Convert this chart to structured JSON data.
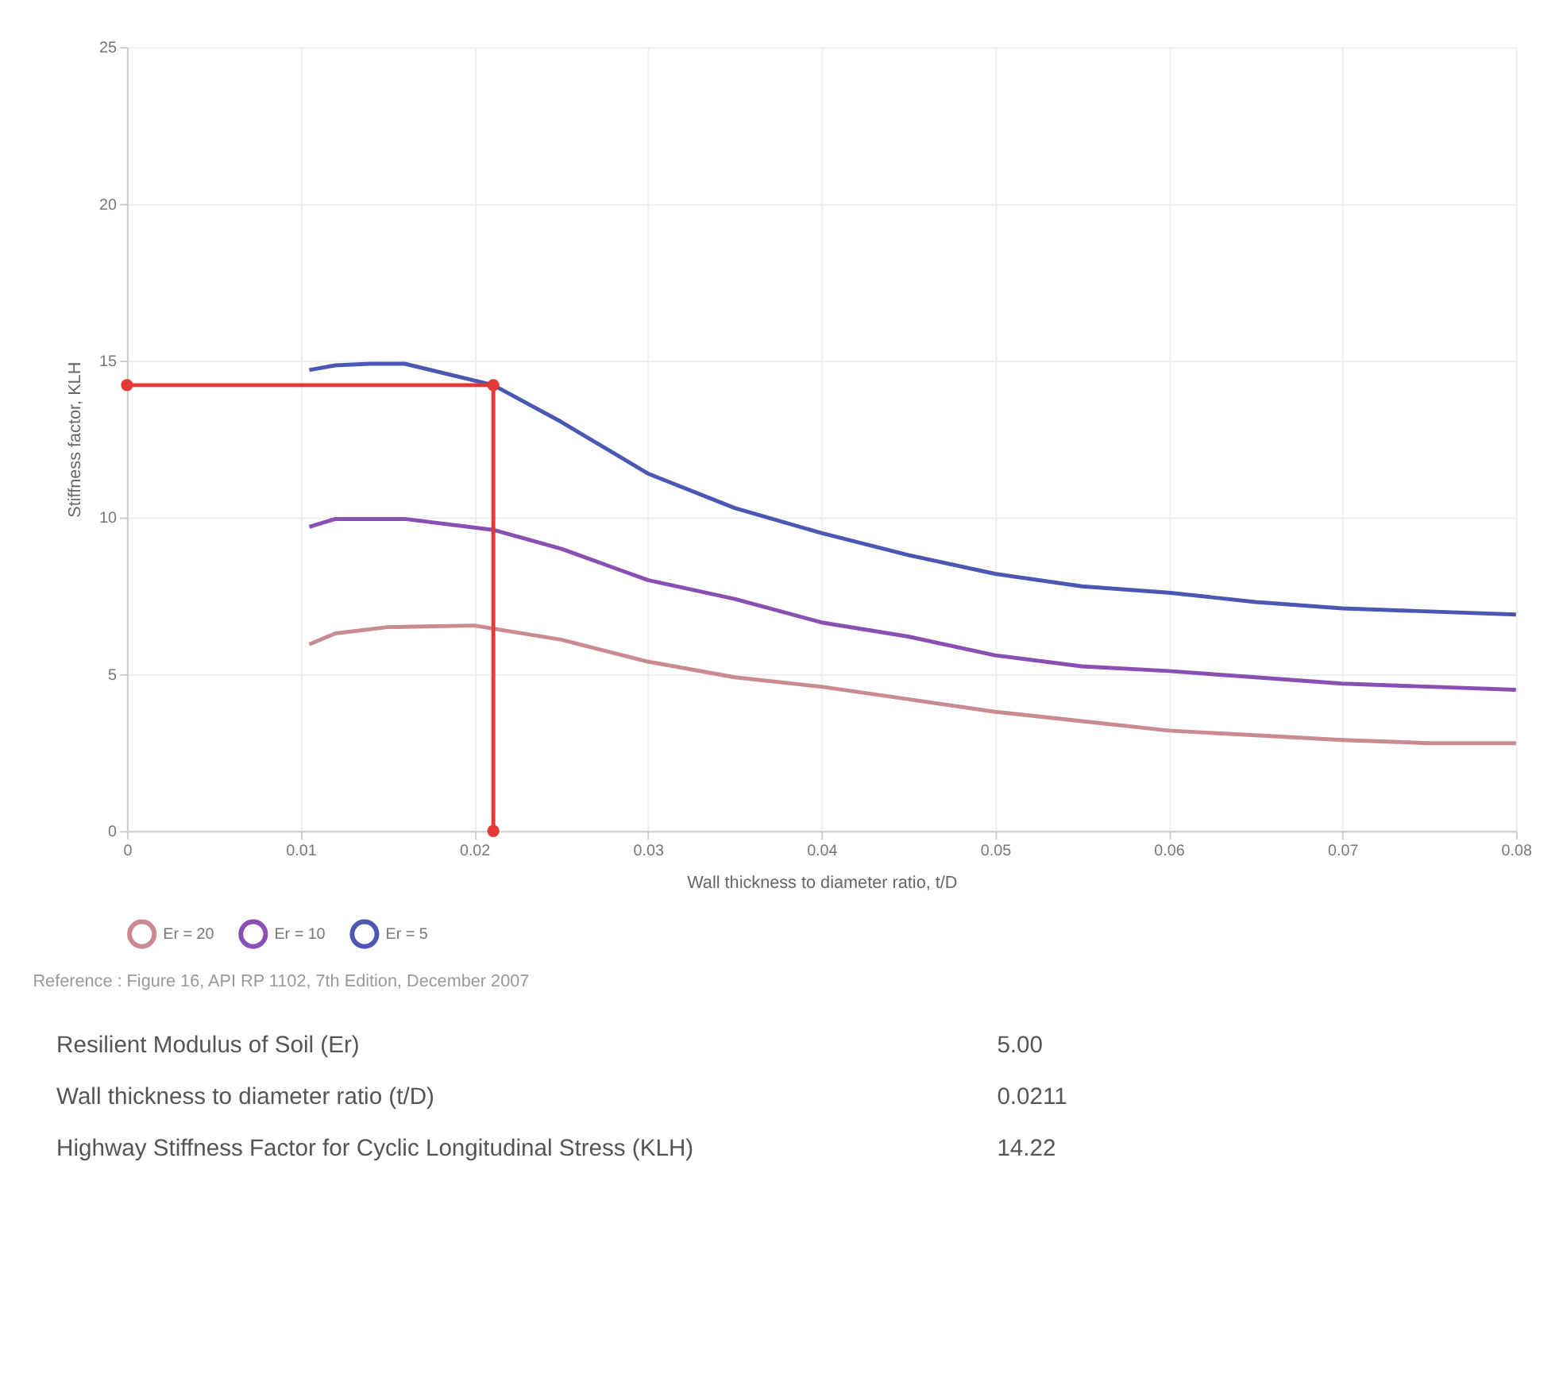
{
  "chart_data": {
    "type": "line",
    "xlabel": "Wall thickness to diameter ratio, t/D",
    "ylabel": "Stiffness factor, KLH",
    "xlim": [
      0,
      0.08
    ],
    "xticks": [
      0,
      0.01,
      0.02,
      0.03,
      0.04,
      0.05,
      0.06,
      0.07,
      0.08
    ],
    "ylim": [
      0,
      25
    ],
    "yticks": [
      0,
      5,
      10,
      15,
      20,
      25
    ],
    "grid": true,
    "legend": "bottom",
    "marker": "none",
    "line_style": "solid",
    "series": [
      {
        "name": "Er = 20",
        "color": "#c98a92",
        "x": [
          0.0105,
          0.012,
          0.015,
          0.02,
          0.025,
          0.03,
          0.035,
          0.04,
          0.045,
          0.05,
          0.055,
          0.06,
          0.065,
          0.07,
          0.075,
          0.08
        ],
        "values": [
          5.95,
          6.3,
          6.5,
          6.55,
          6.1,
          5.4,
          4.9,
          4.6,
          4.2,
          3.8,
          3.5,
          3.2,
          3.05,
          2.9,
          2.8,
          2.8
        ]
      },
      {
        "name": "Er = 10",
        "color": "#8a4fb2",
        "x": [
          0.0105,
          0.012,
          0.016,
          0.0211,
          0.025,
          0.03,
          0.035,
          0.04,
          0.045,
          0.05,
          0.055,
          0.06,
          0.065,
          0.07,
          0.075,
          0.08
        ],
        "values": [
          9.7,
          9.95,
          9.95,
          9.6,
          9.0,
          8.0,
          7.4,
          6.65,
          6.2,
          5.6,
          5.25,
          5.1,
          4.9,
          4.7,
          4.6,
          4.5
        ]
      },
      {
        "name": "Er = 5",
        "color": "#4a58b4",
        "x": [
          0.0105,
          0.012,
          0.014,
          0.016,
          0.0211,
          0.025,
          0.03,
          0.035,
          0.04,
          0.045,
          0.05,
          0.055,
          0.06,
          0.065,
          0.07,
          0.075,
          0.08
        ],
        "values": [
          14.7,
          14.85,
          14.9,
          14.9,
          14.22,
          13.05,
          11.4,
          10.3,
          9.5,
          8.8,
          8.2,
          7.8,
          7.6,
          7.3,
          7.1,
          7.0,
          6.9
        ]
      },
      {
        "color": "#e53935",
        "marker": "circle",
        "x": [
          0,
          0.0211,
          0.0211
        ],
        "values": [
          14.22,
          14.22,
          0
        ]
      }
    ],
    "annotations": [
      "Reference : Figure 16, API RP 1102, 7th Edition, December 2007",
      "Resilient Modulus of Soil (Er)",
      "5.00",
      "Wall thickness to diameter ratio (t/D)",
      "0.0211",
      "Highway Stiffness Factor for Cyclic Longitudinal Stress (KLH)",
      "14.22"
    ]
  }
}
